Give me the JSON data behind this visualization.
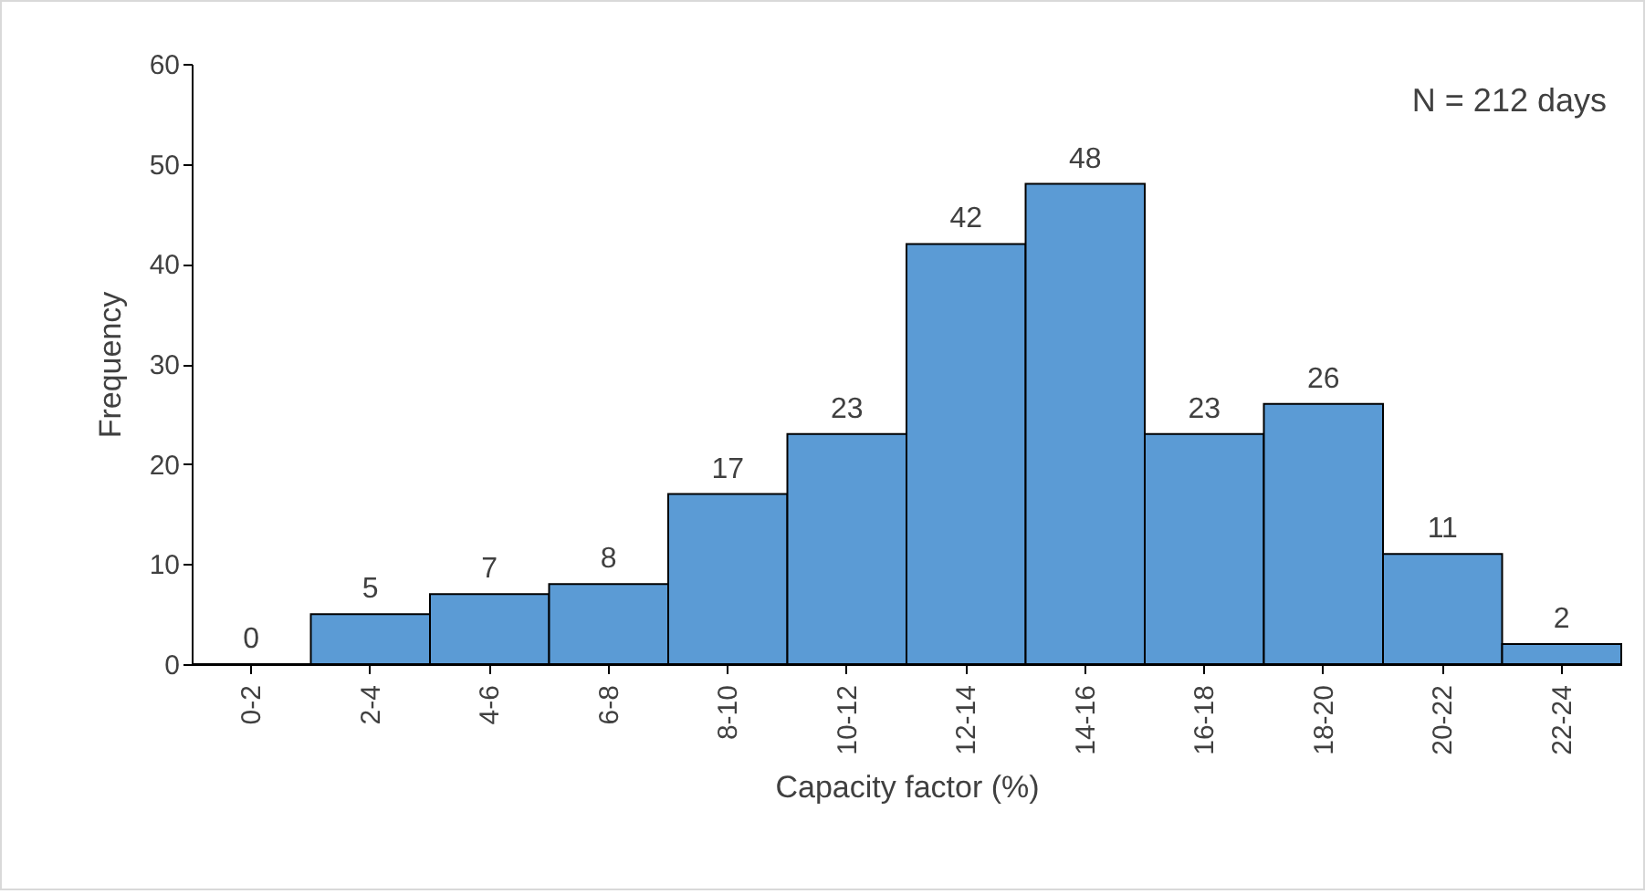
{
  "chart_data": {
    "type": "bar",
    "categories": [
      "0-2",
      "2-4",
      "4-6",
      "6-8",
      "8-10",
      "10-12",
      "12-14",
      "14-16",
      "16-18",
      "18-20",
      "20-22",
      "22-24"
    ],
    "values": [
      0,
      5,
      7,
      8,
      17,
      23,
      42,
      48,
      23,
      26,
      11,
      2
    ],
    "color": "#5b9bd5",
    "xlabel": "Capacity factor (%)",
    "ylabel": "Frequency",
    "ylim": [
      0,
      60
    ],
    "yticks": [
      0,
      10,
      20,
      30,
      40,
      50,
      60
    ],
    "data_labels": true,
    "annotations": [
      "N = 212 days"
    ]
  }
}
